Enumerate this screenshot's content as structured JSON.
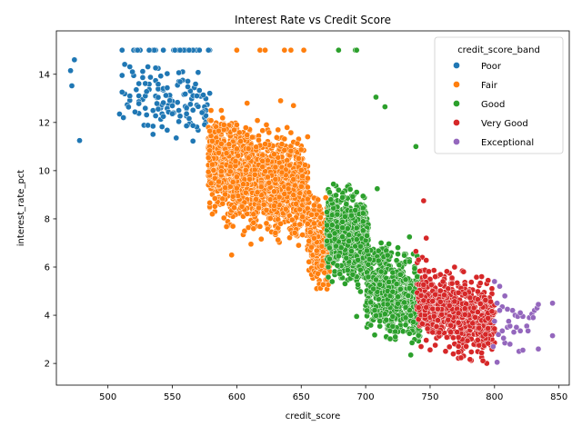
{
  "chart_data": {
    "type": "scatter",
    "title": "Interest Rate vs Credit Score",
    "xlabel": "credit_score",
    "ylabel": "interest_rate_pct",
    "xlim": [
      460,
      858
    ],
    "ylim": [
      1.1,
      15.8
    ],
    "x_ticks": [
      500,
      550,
      600,
      650,
      700,
      750,
      800,
      850
    ],
    "y_ticks": [
      2,
      4,
      6,
      8,
      10,
      12,
      14
    ],
    "grid": false,
    "legend": {
      "title": "credit_score_band",
      "placement": "top-right"
    },
    "series": [
      {
        "name": "Poor",
        "color": "#1f77b4",
        "clusters": [
          {
            "x_min": 510,
            "x_max": 580,
            "y_min": 10.9,
            "y_max": 15.0,
            "count": 170,
            "tilt": 0.18,
            "cap_fraction": 0.2
          }
        ],
        "points": [
          [
            471,
            14.15
          ],
          [
            472,
            13.52
          ],
          [
            474,
            14.6
          ],
          [
            478,
            11.25
          ],
          [
            509,
            12.35
          ],
          [
            512,
            12.2
          ],
          [
            517,
            13.1
          ],
          [
            519,
            14.1
          ]
        ]
      },
      {
        "name": "Fair",
        "color": "#ff7f0e",
        "clusters": [
          {
            "x_min": 578,
            "x_max": 655,
            "y_min": 6.9,
            "y_max": 12.5,
            "count": 1500,
            "tilt": 0.25,
            "cap_fraction": 0
          },
          {
            "x_min": 655,
            "x_max": 672,
            "y_min": 4.5,
            "y_max": 9.5,
            "count": 220,
            "tilt": 0.2,
            "cap_fraction": 0
          }
        ],
        "points": [
          [
            600,
            15.0
          ],
          [
            618,
            15.0
          ],
          [
            622,
            15.0
          ],
          [
            637,
            15.0
          ],
          [
            642,
            15.0
          ],
          [
            652,
            15.0
          ],
          [
            596,
            6.5
          ],
          [
            611,
            6.95
          ],
          [
            608,
            12.8
          ],
          [
            634,
            12.9
          ],
          [
            644,
            12.7
          ]
        ]
      },
      {
        "name": "Good",
        "color": "#2ca02c",
        "clusters": [
          {
            "x_min": 670,
            "x_max": 702,
            "y_min": 4.8,
            "y_max": 9.7,
            "count": 700,
            "tilt": 0.15,
            "cap_fraction": 0
          },
          {
            "x_min": 700,
            "x_max": 742,
            "y_min": 2.6,
            "y_max": 7.3,
            "count": 650,
            "tilt": 0.2,
            "cap_fraction": 0
          }
        ],
        "points": [
          [
            679,
            15.0
          ],
          [
            692,
            15.0
          ],
          [
            693,
            15.0
          ],
          [
            708,
            13.05
          ],
          [
            715,
            12.65
          ],
          [
            739,
            11.0
          ],
          [
            709,
            9.25
          ],
          [
            734,
            7.25
          ],
          [
            735,
            2.35
          ],
          [
            693,
            3.95
          ]
        ]
      },
      {
        "name": "Very Good",
        "color": "#d62728",
        "clusters": [
          {
            "x_min": 740,
            "x_max": 800,
            "y_min": 1.8,
            "y_max": 6.4,
            "count": 650,
            "tilt": 0.2,
            "cap_fraction": 0
          }
        ],
        "points": [
          [
            745,
            8.75
          ],
          [
            747,
            7.2
          ],
          [
            739,
            6.65
          ],
          [
            743,
            2.7
          ]
        ]
      },
      {
        "name": "Exceptional",
        "color": "#9467bd",
        "clusters": [],
        "points": [
          [
            800,
            5.4
          ],
          [
            802,
            4.5
          ],
          [
            804,
            5.2
          ],
          [
            806,
            4.35
          ],
          [
            808,
            4.8
          ],
          [
            800,
            3.75
          ],
          [
            803,
            3.2
          ],
          [
            806,
            3.35
          ],
          [
            808,
            2.85
          ],
          [
            810,
            3.5
          ],
          [
            812,
            3.55
          ],
          [
            814,
            4.2
          ],
          [
            816,
            4.0
          ],
          [
            818,
            3.95
          ],
          [
            820,
            3.35
          ],
          [
            822,
            3.95
          ],
          [
            825,
            3.55
          ],
          [
            827,
            3.9
          ],
          [
            829,
            4.05
          ],
          [
            831,
            4.2
          ],
          [
            833,
            4.3
          ],
          [
            834,
            4.45
          ],
          [
            845,
            4.5
          ],
          [
            845,
            3.15
          ],
          [
            834,
            2.6
          ],
          [
            819,
            2.5
          ],
          [
            802,
            2.05
          ],
          [
            812,
            2.8
          ],
          [
            817,
            3.5
          ],
          [
            810,
            4.25
          ],
          [
            815,
            3.3
          ],
          [
            820,
            4.1
          ],
          [
            822,
            2.55
          ],
          [
            799,
            2.7
          ],
          [
            804,
            4.2
          ],
          [
            811,
            3.75
          ],
          [
            826,
            3.35
          ],
          [
            830,
            3.9
          ],
          [
            807,
            3.05
          ]
        ]
      }
    ]
  }
}
